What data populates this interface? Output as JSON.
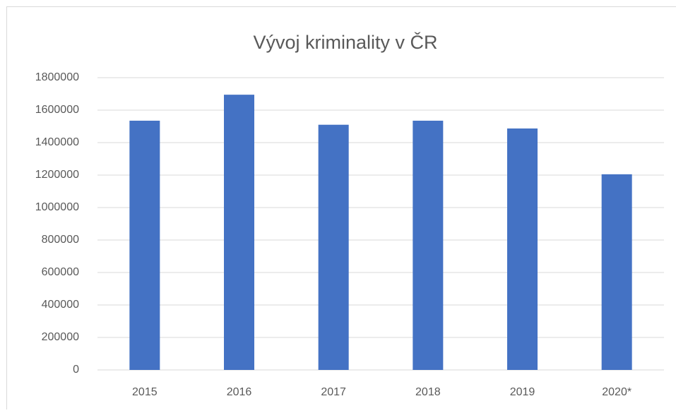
{
  "chart_data": {
    "type": "bar",
    "title": "Vývoj kriminality v ČR",
    "categories": [
      "2015",
      "2016",
      "2017",
      "2018",
      "2019",
      "2020*"
    ],
    "values": [
      1535000,
      1695000,
      1510000,
      1535000,
      1487000,
      1205000
    ],
    "color": "#4472c4",
    "ylim": [
      0,
      1800000
    ],
    "yticks": [
      0,
      200000,
      400000,
      600000,
      800000,
      1000000,
      1200000,
      1400000,
      1600000,
      1800000
    ],
    "grid": true
  }
}
